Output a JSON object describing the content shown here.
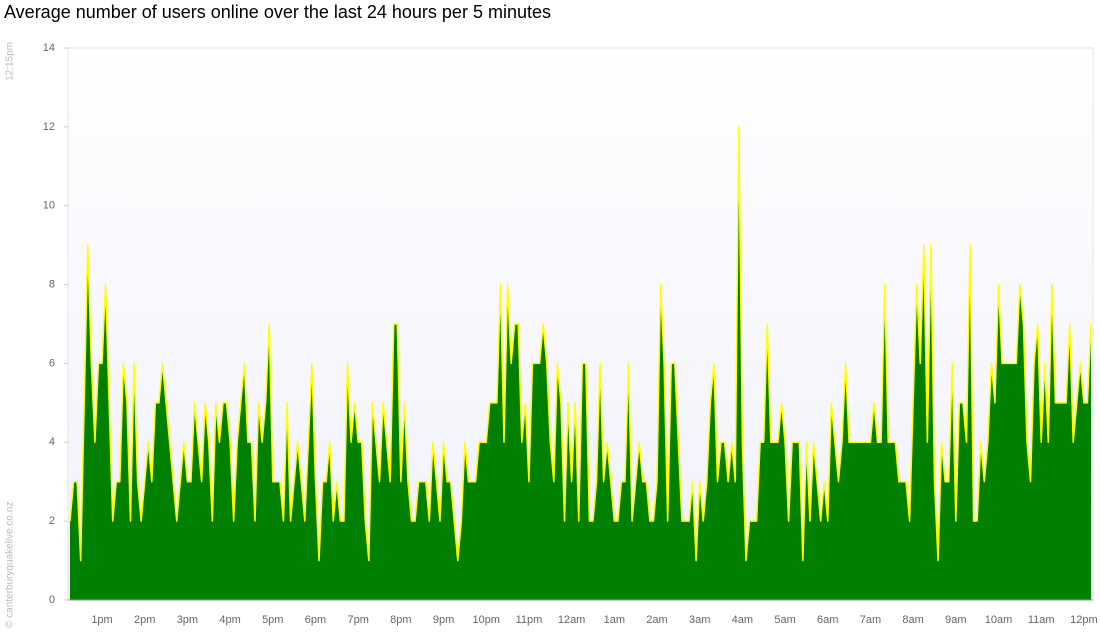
{
  "chart_data": {
    "type": "area",
    "title": "Average number of users online over the last 24 hours per 5 minutes",
    "annotations": [
      "12:15pm",
      "© canterburyquakelive.co.nz"
    ],
    "color": "#008000",
    "line_color": "#ffff00",
    "ylim": [
      0,
      14
    ],
    "yticks": [
      0,
      2,
      4,
      6,
      8,
      10,
      12,
      14
    ],
    "categories": [
      null,
      null,
      null,
      null,
      null,
      null,
      null,
      null,
      null,
      "1pm",
      null,
      null,
      null,
      null,
      null,
      null,
      null,
      null,
      null,
      null,
      null,
      "2pm",
      null,
      null,
      null,
      null,
      null,
      null,
      null,
      null,
      null,
      null,
      null,
      "3pm",
      null,
      null,
      null,
      null,
      null,
      null,
      null,
      null,
      null,
      null,
      null,
      "4pm",
      null,
      null,
      null,
      null,
      null,
      null,
      null,
      null,
      null,
      null,
      null,
      "5pm",
      null,
      null,
      null,
      null,
      null,
      null,
      null,
      null,
      null,
      null,
      null,
      "6pm",
      null,
      null,
      null,
      null,
      null,
      null,
      null,
      null,
      null,
      null,
      null,
      "7pm",
      null,
      null,
      null,
      null,
      null,
      null,
      null,
      null,
      null,
      null,
      null,
      "8pm",
      null,
      null,
      null,
      null,
      null,
      null,
      null,
      null,
      null,
      null,
      null,
      "9pm",
      null,
      null,
      null,
      null,
      null,
      null,
      null,
      null,
      null,
      null,
      null,
      "10pm",
      null,
      null,
      null,
      null,
      null,
      null,
      null,
      null,
      null,
      null,
      null,
      "11pm",
      null,
      null,
      null,
      null,
      null,
      null,
      null,
      null,
      null,
      null,
      null,
      "12am",
      null,
      null,
      null,
      null,
      null,
      null,
      null,
      null,
      null,
      null,
      null,
      "1am",
      null,
      null,
      null,
      null,
      null,
      null,
      null,
      null,
      null,
      null,
      null,
      "2am",
      null,
      null,
      null,
      null,
      null,
      null,
      null,
      null,
      null,
      null,
      null,
      "3am",
      null,
      null,
      null,
      null,
      null,
      null,
      null,
      null,
      null,
      null,
      null,
      "4am",
      null,
      null,
      null,
      null,
      null,
      null,
      null,
      null,
      null,
      null,
      null,
      "5am",
      null,
      null,
      null,
      null,
      null,
      null,
      null,
      null,
      null,
      null,
      null,
      "6am",
      null,
      null,
      null,
      null,
      null,
      null,
      null,
      null,
      null,
      null,
      null,
      "7am",
      null,
      null,
      null,
      null,
      null,
      null,
      null,
      null,
      null,
      null,
      null,
      "8am",
      null,
      null,
      null,
      null,
      null,
      null,
      null,
      null,
      null,
      null,
      null,
      "9am",
      null,
      null,
      null,
      null,
      null,
      null,
      null,
      null,
      null,
      null,
      null,
      "10am",
      null,
      null,
      null,
      null,
      null,
      null,
      null,
      null,
      null,
      null,
      null,
      "11am",
      null,
      null,
      null,
      null,
      null,
      null,
      null,
      null,
      null,
      null,
      null,
      "12pm",
      null,
      null
    ],
    "values": [
      2,
      3,
      3,
      1,
      5,
      9,
      6,
      4,
      6,
      6,
      8,
      5,
      2,
      3,
      3,
      6,
      5,
      2,
      6,
      3,
      2,
      3,
      4,
      3,
      5,
      5,
      6,
      5,
      4,
      3,
      2,
      3,
      4,
      3,
      3,
      5,
      4,
      3,
      5,
      4,
      2,
      5,
      4,
      5,
      5,
      4,
      2,
      4,
      5,
      6,
      4,
      4,
      2,
      5,
      4,
      5,
      7,
      3,
      3,
      3,
      2,
      5,
      2,
      3,
      4,
      3,
      2,
      4,
      6,
      3,
      1,
      3,
      3,
      4,
      2,
      3,
      2,
      2,
      6,
      4,
      5,
      4,
      4,
      2,
      1,
      5,
      4,
      3,
      5,
      4,
      3,
      7,
      7,
      3,
      5,
      3,
      2,
      2,
      3,
      3,
      3,
      2,
      4,
      3,
      2,
      4,
      3,
      3,
      2,
      1,
      2,
      4,
      3,
      3,
      3,
      4,
      4,
      4,
      5,
      5,
      5,
      8,
      4,
      8,
      6,
      7,
      7,
      4,
      5,
      3,
      6,
      6,
      6,
      7,
      6,
      4,
      3,
      6,
      5,
      2,
      5,
      3,
      5,
      2,
      6,
      6,
      2,
      2,
      3,
      6,
      3,
      4,
      3,
      2,
      2,
      3,
      3,
      6,
      2,
      3,
      4,
      3,
      3,
      2,
      2,
      3,
      8,
      6,
      2,
      6,
      6,
      4,
      2,
      2,
      2,
      3,
      1,
      3,
      2,
      3,
      5,
      6,
      3,
      4,
      4,
      3,
      4,
      3,
      12,
      4,
      1,
      2,
      2,
      2,
      4,
      4,
      7,
      4,
      4,
      4,
      5,
      4,
      2,
      4,
      4,
      4,
      1,
      4,
      2,
      4,
      3,
      2,
      3,
      2,
      5,
      4,
      3,
      4,
      6,
      4,
      4,
      4,
      4,
      4,
      4,
      4,
      5,
      4,
      4,
      8,
      4,
      4,
      4,
      3,
      3,
      3,
      2,
      5,
      8,
      6,
      9,
      4,
      9,
      3,
      1,
      4,
      3,
      3,
      6,
      2,
      5,
      5,
      4,
      9,
      2,
      2,
      4,
      3,
      4,
      6,
      5,
      8,
      6,
      6,
      6,
      6,
      6,
      8,
      7,
      4,
      3,
      6,
      7,
      4,
      6,
      4,
      8,
      5,
      5,
      5,
      5,
      7,
      4,
      5,
      6,
      5,
      5,
      7
    ]
  }
}
